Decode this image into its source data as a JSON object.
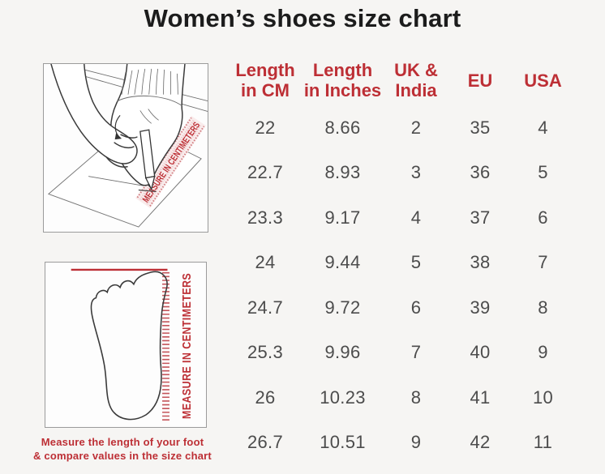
{
  "title": "Women’s shoes size chart",
  "colors": {
    "background": "#f6f5f3",
    "accent_red": "#bd2f35",
    "title_text": "#1c1c1c",
    "value_text": "#4c4c4c",
    "line_art": "#3a3a3a",
    "box_border": "#9b9b9b"
  },
  "illustrations": {
    "top": {
      "name": "measuring-foot-with-pencil",
      "ruler_label": "MEASURE IN CENTIMETERS"
    },
    "bottom": {
      "name": "footprint-with-ruler",
      "ruler_label": "MEASURE IN CENTIMETERS"
    },
    "caption_line1": "Measure the length of your foot",
    "caption_line2": "& compare values in the size chart"
  },
  "table": {
    "headers": [
      {
        "line1": "Length",
        "line2": "in CM"
      },
      {
        "line1": "Length",
        "line2": "in Inches"
      },
      {
        "line1": "UK &",
        "line2": "India"
      },
      {
        "line1": "EU",
        "line2": ""
      },
      {
        "line1": "USA",
        "line2": ""
      }
    ]
  },
  "chart_data": {
    "type": "table",
    "title": "Women’s shoes size chart",
    "columns": [
      "Length in CM",
      "Length in Inches",
      "UK & India",
      "EU",
      "USA"
    ],
    "rows": [
      [
        "22",
        "8.66",
        "2",
        "35",
        "4"
      ],
      [
        "22.7",
        "8.93",
        "3",
        "36",
        "5"
      ],
      [
        "23.3",
        "9.17",
        "4",
        "37",
        "6"
      ],
      [
        "24",
        "9.44",
        "5",
        "38",
        "7"
      ],
      [
        "24.7",
        "9.72",
        "6",
        "39",
        "8"
      ],
      [
        "25.3",
        "9.96",
        "7",
        "40",
        "9"
      ],
      [
        "26",
        "10.23",
        "8",
        "41",
        "10"
      ],
      [
        "26.7",
        "10.51",
        "9",
        "42",
        "11"
      ]
    ]
  }
}
